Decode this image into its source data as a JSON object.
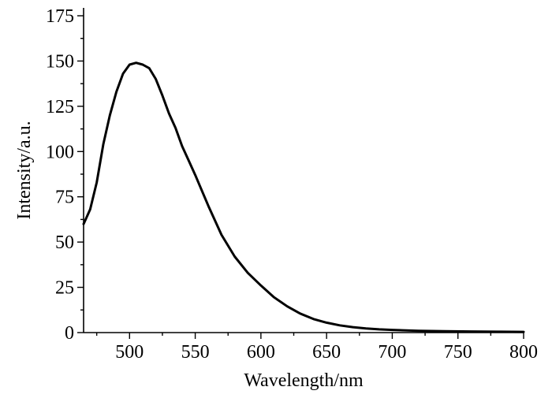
{
  "chart_data": {
    "type": "line",
    "title": "",
    "xlabel": "Wavelength/nm",
    "ylabel": "Intensity/a.u.",
    "xlim": [
      465,
      800
    ],
    "ylim": [
      0,
      175
    ],
    "x_ticks": [
      500,
      550,
      600,
      650,
      700,
      750,
      800
    ],
    "y_ticks": [
      0,
      25,
      50,
      75,
      100,
      125,
      150,
      175
    ],
    "x_minor_step": 25,
    "y_minor_step": 12.5,
    "grid": false,
    "legend": "none",
    "colors": {
      "line": "#000000",
      "axis": "#000000"
    },
    "series": [
      {
        "x": [
          465,
          470,
          475,
          480,
          485,
          490,
          495,
          500,
          505,
          510,
          515,
          520,
          525,
          530,
          535,
          540,
          545,
          550,
          560,
          570,
          580,
          590,
          600,
          610,
          620,
          630,
          640,
          650,
          660,
          670,
          680,
          690,
          700,
          720,
          740,
          760,
          780,
          800
        ],
        "values": [
          60,
          68,
          83,
          104,
          120,
          133,
          143,
          148,
          149,
          148,
          146,
          140,
          131,
          121,
          113,
          103,
          95,
          87,
          70,
          54,
          42,
          33,
          26,
          19.5,
          14.5,
          10.5,
          7.5,
          5.5,
          4,
          3,
          2.3,
          1.8,
          1.5,
          1,
          0.8,
          0.6,
          0.5,
          0.4
        ]
      }
    ]
  }
}
